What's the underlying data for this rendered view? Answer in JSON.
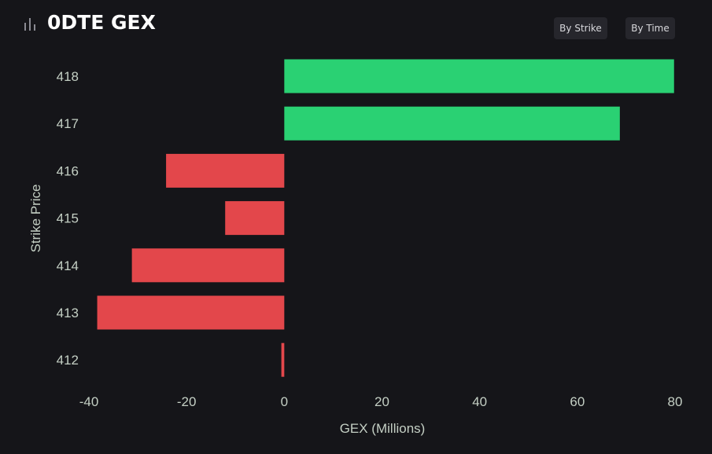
{
  "header": {
    "title": "0DTE GEX",
    "title_icon": "bar-chart-icon",
    "buttons": {
      "by_strike": "By Strike",
      "by_time": "By Time"
    }
  },
  "colors": {
    "background": "#151519",
    "positive": "#2ad173",
    "negative": "#e3474b",
    "text": "#c4cfc4",
    "button_bg": "#26262c"
  },
  "chart_data": {
    "type": "bar",
    "orientation": "horizontal",
    "categories": [
      "418",
      "417",
      "416",
      "415",
      "414",
      "413",
      "412"
    ],
    "values": [
      79.8,
      68.7,
      -24.2,
      -12.1,
      -31.2,
      -38.3,
      -0.6
    ],
    "xlabel": "GEX (Millions)",
    "ylabel": "Strike Price",
    "xlim": [
      -40,
      80
    ],
    "xticks": [
      "-40",
      "-20",
      "0",
      "20",
      "40",
      "60",
      "80"
    ],
    "grid": false,
    "legend": "none"
  }
}
